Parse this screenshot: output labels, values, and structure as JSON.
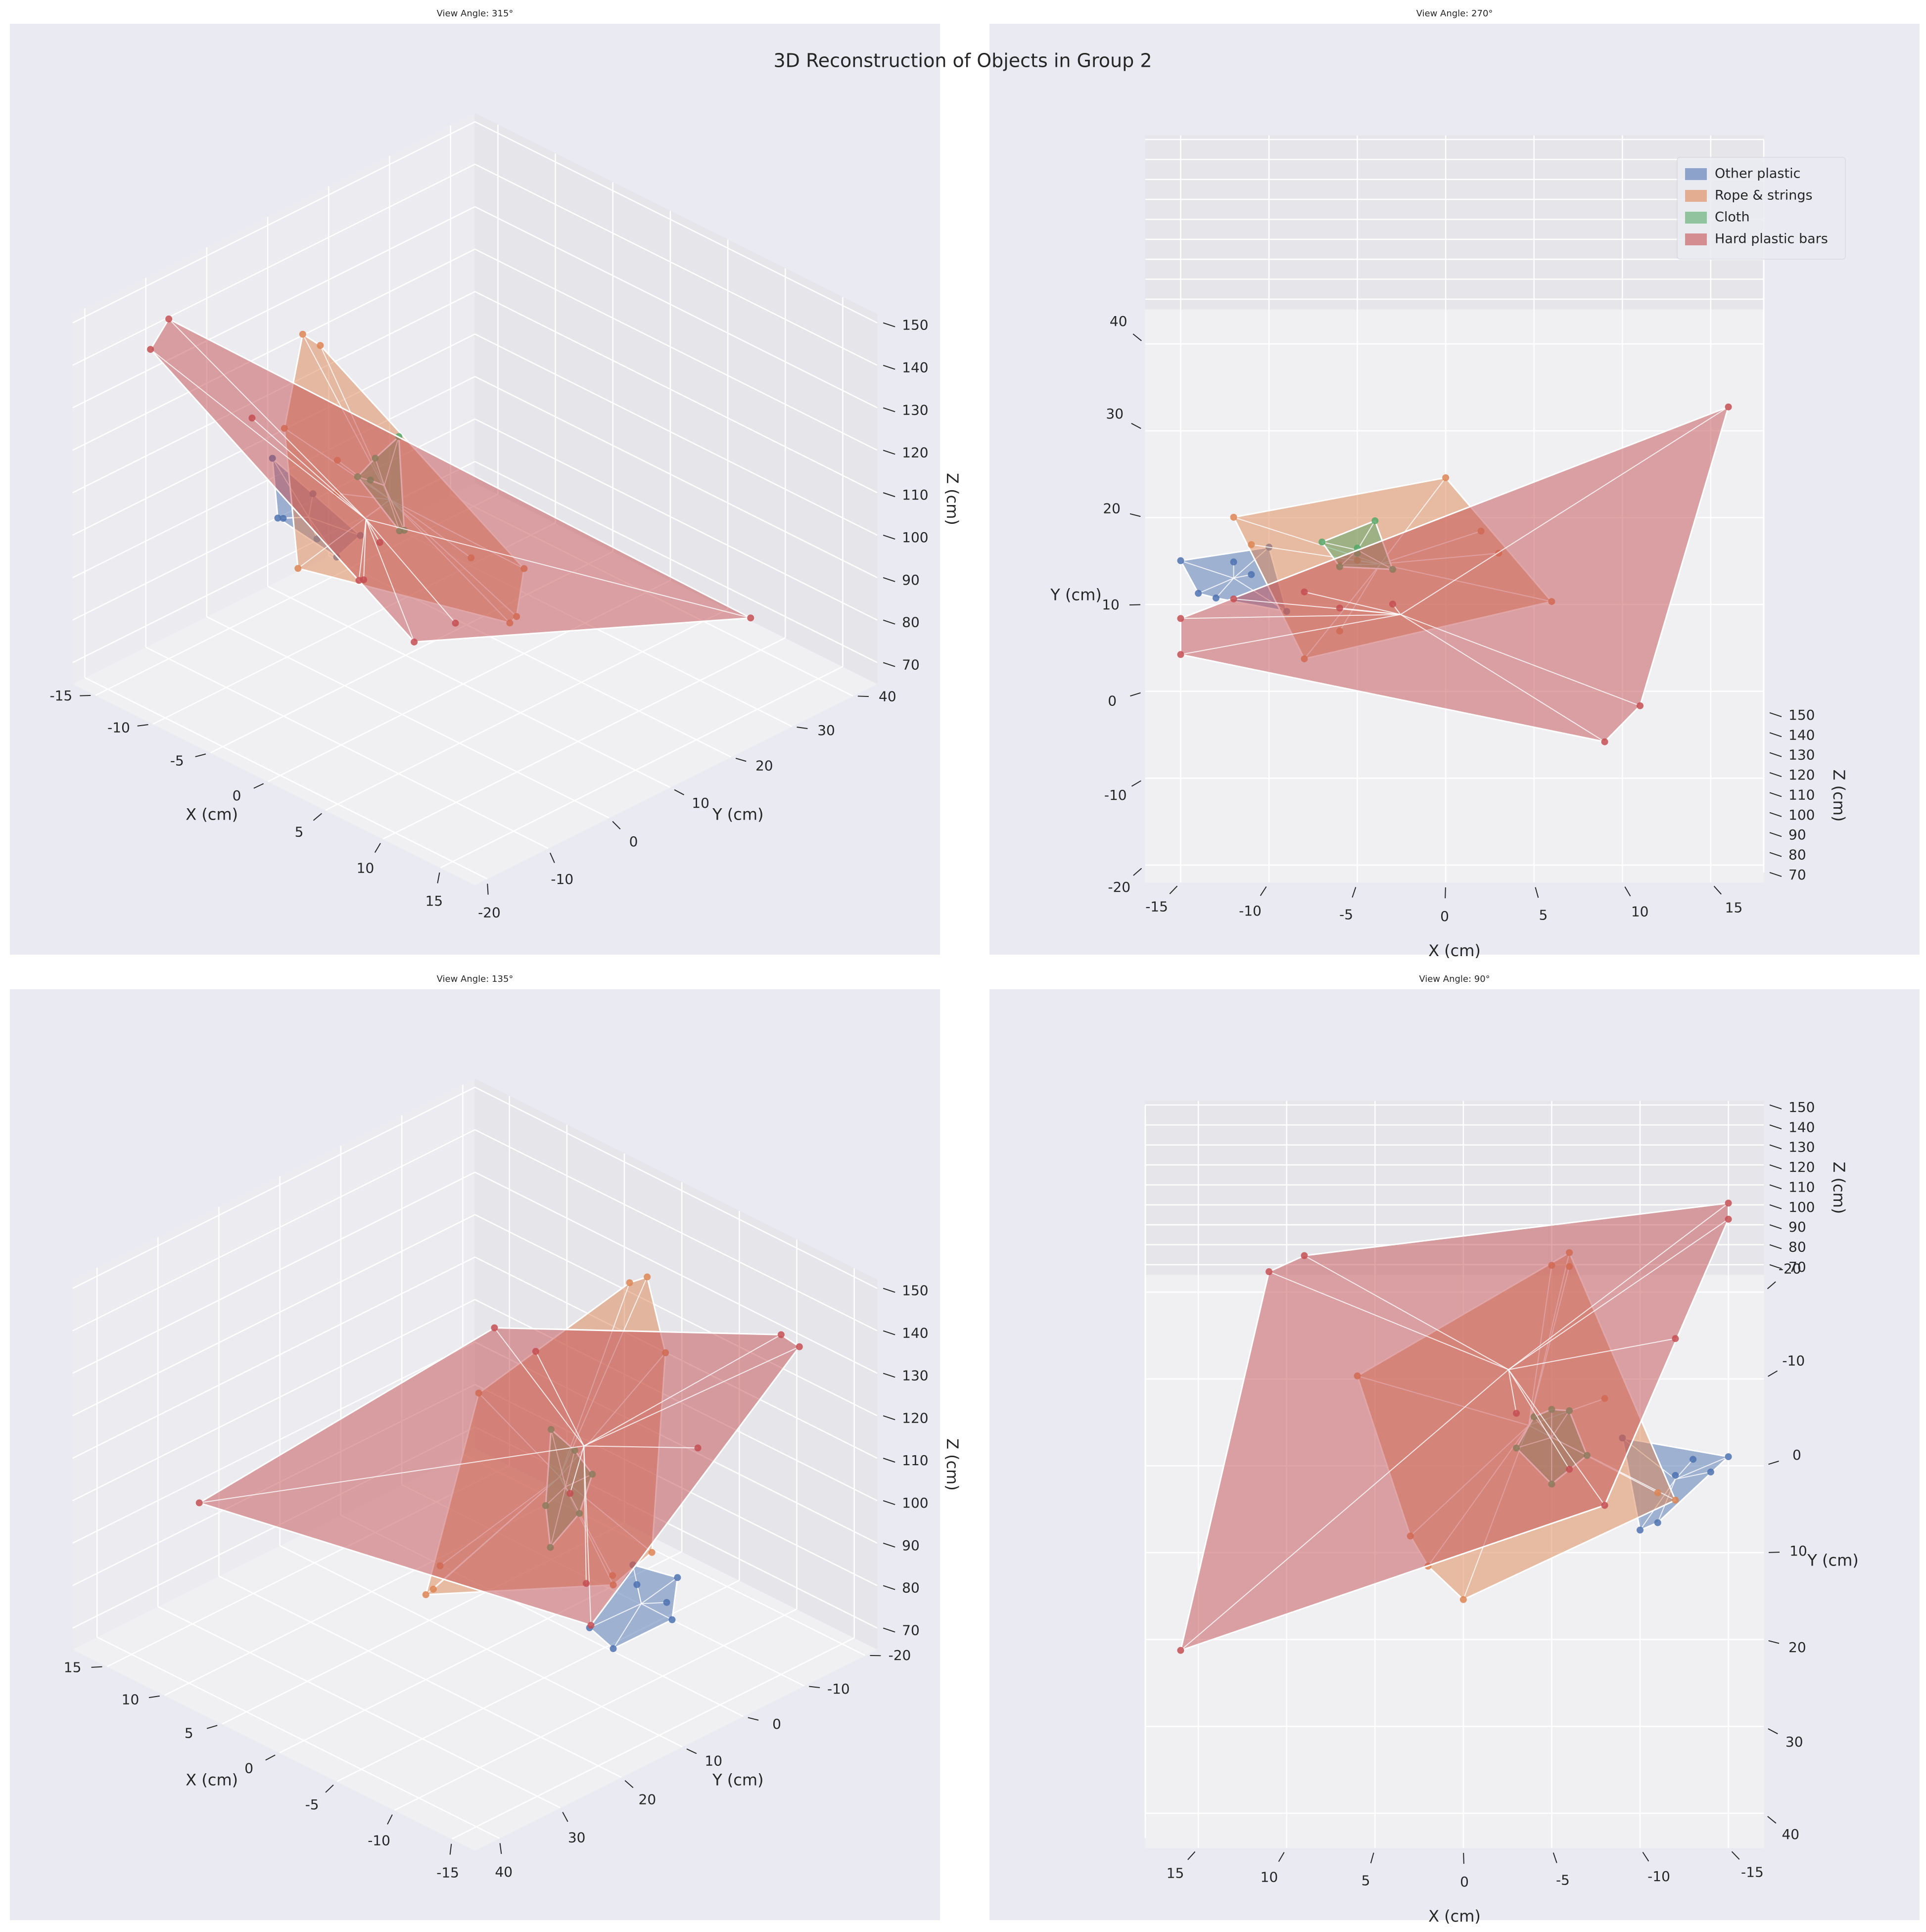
{
  "chart_data": {
    "type": "hull3d",
    "title": "3D Reconstruction of Objects in Group 2",
    "xlabel": "X (cm)",
    "ylabel": "Y (cm)",
    "zlabel": "Z (cm)",
    "xlim": [
      -17,
      18
    ],
    "ylim": [
      -22,
      44
    ],
    "zlim": [
      65,
      152
    ],
    "xticks": [
      -15,
      -10,
      -5,
      0,
      5,
      10,
      15
    ],
    "yticks": [
      -20,
      -10,
      0,
      10,
      20,
      30,
      40
    ],
    "zticks": [
      70,
      80,
      90,
      100,
      110,
      120,
      130,
      140,
      150
    ],
    "grid": true,
    "legend": "upper right",
    "views": [
      {
        "title": "View Angle: 315°"
      },
      {
        "title": "View Angle: 270°"
      },
      {
        "title": "View Angle: 135°"
      },
      {
        "title": "View Angle: 90°"
      }
    ],
    "series": [
      {
        "name": "Other plastic",
        "color": "#4c72b0",
        "x": [
          -13,
          -12,
          -10,
          -15,
          -9,
          -11,
          -14
        ],
        "y": [
          5,
          8,
          12,
          7,
          3,
          10,
          6
        ],
        "z": [
          90,
          95,
          85,
          100,
          92,
          80,
          88
        ]
      },
      {
        "name": "Rope & strings",
        "color": "#dd8452",
        "x": [
          -6,
          -5,
          -6,
          -11,
          -12,
          2,
          3,
          6,
          -8,
          0
        ],
        "y": [
          -5,
          -4,
          -8,
          10,
          12,
          15,
          12,
          0,
          -2,
          20
        ],
        "z": [
          150,
          148,
          130,
          95,
          100,
          80,
          82,
          110,
          90,
          85
        ]
      },
      {
        "name": "Cloth",
        "color": "#55a868",
        "x": [
          -5,
          -4,
          -6,
          -3,
          -5,
          -7
        ],
        "y": [
          5,
          7,
          4,
          6,
          9,
          8
        ],
        "z": [
          115,
          120,
          110,
          100,
          95,
          105
        ]
      },
      {
        "name": "Hard plastic bars",
        "color": "#c44e52",
        "x": [
          -15,
          -15,
          16,
          11,
          9,
          -12,
          -6,
          -3,
          -8
        ],
        "y": [
          -13,
          -10,
          27,
          -12,
          -15,
          -2,
          5,
          2,
          8
        ],
        "z": [
          140,
          145,
          90,
          110,
          105,
          120,
          85,
          100,
          80
        ]
      }
    ]
  }
}
